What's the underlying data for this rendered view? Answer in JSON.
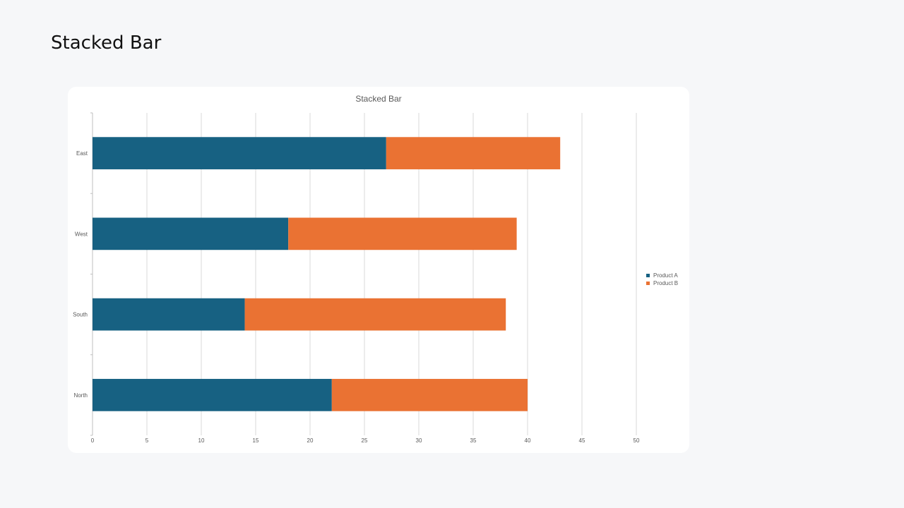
{
  "page": {
    "title": "Stacked Bar"
  },
  "chart_data": {
    "type": "bar",
    "orientation": "horizontal",
    "stacked": true,
    "title": "Stacked Bar",
    "categories": [
      "East",
      "West",
      "South",
      "North"
    ],
    "series": [
      {
        "name": "Product A",
        "values": [
          27,
          18,
          14,
          22
        ],
        "color": "#176182"
      },
      {
        "name": "Product B",
        "values": [
          16,
          21,
          24,
          18
        ],
        "color": "#ea7233"
      }
    ],
    "xlim": [
      0,
      50
    ],
    "xticks": [
      0,
      5,
      10,
      15,
      20,
      25,
      30,
      35,
      40,
      45,
      50
    ],
    "grid": true,
    "legend_position": "right"
  }
}
